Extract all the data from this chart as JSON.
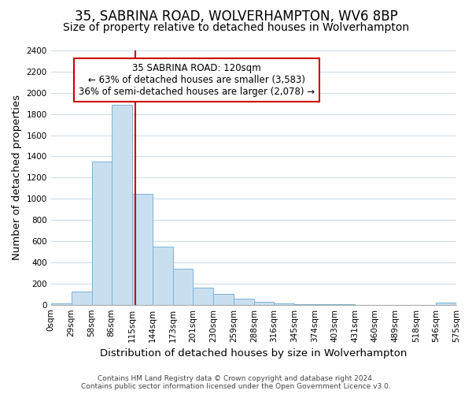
{
  "title": "35, SABRINA ROAD, WOLVERHAMPTON, WV6 8BP",
  "subtitle": "Size of property relative to detached houses in Wolverhampton",
  "xlabel": "Distribution of detached houses by size in Wolverhampton",
  "ylabel": "Number of detached properties",
  "bar_values": [
    10,
    125,
    1350,
    1890,
    1050,
    550,
    340,
    160,
    105,
    60,
    30,
    10,
    5,
    3,
    2,
    1,
    1,
    1,
    1,
    20
  ],
  "bin_edges": [
    0,
    29,
    58,
    86,
    115,
    144,
    173,
    201,
    230,
    259,
    288,
    316,
    345,
    374,
    403,
    431,
    460,
    489,
    518,
    546,
    575
  ],
  "tick_labels": [
    "0sqm",
    "29sqm",
    "58sqm",
    "86sqm",
    "115sqm",
    "144sqm",
    "173sqm",
    "201sqm",
    "230sqm",
    "259sqm",
    "288sqm",
    "316sqm",
    "345sqm",
    "374sqm",
    "403sqm",
    "431sqm",
    "460sqm",
    "489sqm",
    "518sqm",
    "546sqm",
    "575sqm"
  ],
  "bar_color": "#c9dff0",
  "bar_edge_color": "#7ab3d3",
  "property_line_x": 120,
  "property_line_color": "#cc0000",
  "annotation_title": "35 SABRINA ROAD: 120sqm",
  "annotation_line1": "← 63% of detached houses are smaller (3,583)",
  "annotation_line2": "36% of semi-detached houses are larger (2,078) →",
  "annotation_box_color": "#ffffff",
  "annotation_box_edge_color": "#cc0000",
  "ylim": [
    0,
    2400
  ],
  "yticks": [
    0,
    200,
    400,
    600,
    800,
    1000,
    1200,
    1400,
    1600,
    1800,
    2000,
    2200,
    2400
  ],
  "footer1": "Contains HM Land Registry data © Crown copyright and database right 2024.",
  "footer2": "Contains public sector information licensed under the Open Government Licence v3.0.",
  "background_color": "#ffffff",
  "grid_color": "#d0dce8",
  "title_fontsize": 12,
  "subtitle_fontsize": 10,
  "axis_label_fontsize": 9.5,
  "tick_fontsize": 7.5,
  "annotation_fontsize": 8.5,
  "footer_fontsize": 6.5
}
